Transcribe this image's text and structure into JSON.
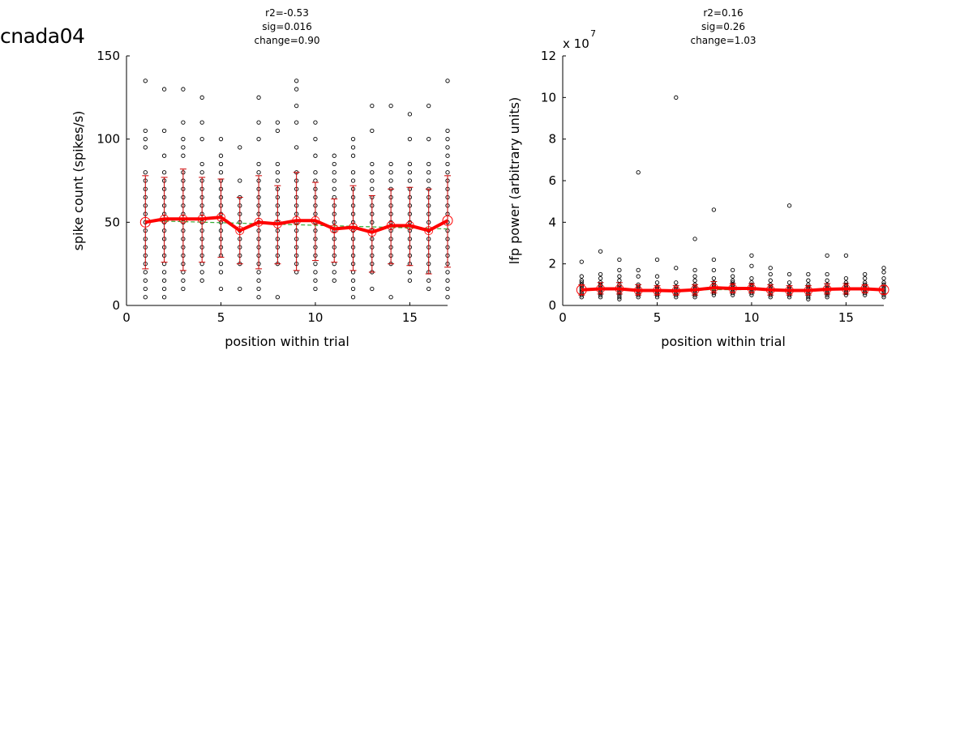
{
  "page": {
    "title": "cnada04"
  },
  "chart_data": [
    {
      "type": "scatter",
      "stats": [
        "r2=-0.53",
        "sig=0.016",
        "change=0.90"
      ],
      "xlabel": "position within trial",
      "ylabel": "spike count (spikes/s)",
      "xlim": [
        0,
        17
      ],
      "ylim": [
        0,
        150
      ],
      "xticks": [
        0,
        5,
        10,
        15
      ],
      "yticks": [
        0,
        50,
        100,
        150
      ],
      "exponent_label": "",
      "grid": false,
      "colors": {
        "points": "#000000",
        "mean": "#ff0000",
        "errorbar": "#cc0000",
        "fit": "#33aa33"
      },
      "positions": [
        1,
        2,
        3,
        4,
        5,
        6,
        7,
        8,
        9,
        10,
        11,
        12,
        13,
        14,
        15,
        16,
        17
      ],
      "trial_points": [
        [
          5,
          10,
          15,
          20,
          25,
          30,
          35,
          40,
          45,
          50,
          55,
          60,
          65,
          70,
          75,
          80,
          95,
          100,
          105,
          135
        ],
        [
          5,
          10,
          15,
          20,
          25,
          30,
          35,
          40,
          45,
          50,
          55,
          60,
          65,
          70,
          75,
          80,
          90,
          105,
          130
        ],
        [
          10,
          15,
          20,
          25,
          30,
          35,
          40,
          45,
          50,
          55,
          60,
          65,
          70,
          75,
          80,
          90,
          95,
          100,
          110,
          130
        ],
        [
          15,
          20,
          25,
          30,
          35,
          40,
          45,
          50,
          55,
          60,
          65,
          70,
          75,
          80,
          85,
          100,
          110,
          125
        ],
        [
          10,
          20,
          25,
          30,
          35,
          40,
          45,
          50,
          55,
          60,
          65,
          70,
          75,
          80,
          85,
          90,
          100
        ],
        [
          10,
          25,
          30,
          35,
          40,
          45,
          50,
          55,
          60,
          65,
          75,
          95
        ],
        [
          5,
          10,
          15,
          20,
          25,
          30,
          35,
          40,
          45,
          50,
          55,
          60,
          65,
          70,
          75,
          80,
          85,
          100,
          110,
          125
        ],
        [
          5,
          25,
          30,
          35,
          40,
          45,
          50,
          55,
          60,
          65,
          70,
          75,
          80,
          85,
          105,
          110
        ],
        [
          20,
          25,
          30,
          35,
          40,
          45,
          50,
          55,
          60,
          65,
          70,
          75,
          80,
          95,
          110,
          120,
          130,
          135
        ],
        [
          10,
          15,
          20,
          25,
          30,
          35,
          40,
          45,
          50,
          55,
          60,
          65,
          70,
          75,
          80,
          90,
          100,
          110
        ],
        [
          15,
          20,
          25,
          30,
          35,
          40,
          45,
          50,
          55,
          60,
          65,
          70,
          75,
          80,
          85,
          90
        ],
        [
          5,
          10,
          15,
          20,
          25,
          30,
          35,
          40,
          45,
          50,
          55,
          60,
          65,
          70,
          75,
          80,
          90,
          95,
          100
        ],
        [
          10,
          20,
          25,
          30,
          35,
          40,
          45,
          50,
          55,
          60,
          65,
          70,
          75,
          80,
          85,
          105,
          120
        ],
        [
          5,
          25,
          30,
          35,
          40,
          45,
          50,
          55,
          60,
          65,
          70,
          75,
          80,
          85,
          120
        ],
        [
          15,
          20,
          25,
          30,
          35,
          40,
          45,
          50,
          55,
          60,
          65,
          70,
          75,
          80,
          85,
          100,
          115
        ],
        [
          10,
          15,
          20,
          25,
          30,
          35,
          40,
          45,
          50,
          55,
          60,
          65,
          70,
          75,
          80,
          85,
          100,
          120
        ],
        [
          5,
          10,
          15,
          20,
          25,
          30,
          35,
          40,
          45,
          50,
          55,
          60,
          65,
          70,
          75,
          80,
          85,
          90,
          95,
          100,
          105,
          135
        ]
      ],
      "mean": [
        50,
        52,
        52,
        52,
        53,
        45,
        50,
        49,
        51,
        51,
        46,
        47,
        44,
        48,
        48,
        45,
        51
      ],
      "errorbar_low": [
        22,
        26,
        21,
        26,
        29,
        25,
        22,
        25,
        21,
        27,
        26,
        21,
        20,
        25,
        24,
        19,
        23
      ],
      "errorbar_high": [
        78,
        77,
        82,
        77,
        76,
        65,
        78,
        72,
        80,
        74,
        64,
        72,
        66,
        70,
        71,
        70,
        78
      ],
      "fit": {
        "x": [
          1,
          17
        ],
        "y": [
          51,
          46
        ]
      }
    },
    {
      "type": "scatter",
      "stats": [
        "r2=0.16",
        "sig=0.26",
        "change=1.03"
      ],
      "xlabel": "position within trial",
      "ylabel": "lfp power (arbitrary units)",
      "xlim": [
        0,
        17
      ],
      "ylim": [
        0,
        12
      ],
      "xticks": [
        0,
        5,
        10,
        15
      ],
      "yticks": [
        0,
        2,
        4,
        6,
        8,
        10,
        12
      ],
      "exponent_label": "x 10",
      "exponent_power": "7",
      "grid": false,
      "colors": {
        "points": "#000000",
        "mean": "#ff0000",
        "errorbar": "#cc0000",
        "fit": "#33aa33"
      },
      "positions": [
        1,
        2,
        3,
        4,
        5,
        6,
        7,
        8,
        9,
        10,
        11,
        12,
        13,
        14,
        15,
        16,
        17
      ],
      "trial_points": [
        [
          0.4,
          0.5,
          0.6,
          0.7,
          0.8,
          0.9,
          1.0,
          1.1,
          1.2,
          1.4,
          2.1
        ],
        [
          0.4,
          0.5,
          0.6,
          0.7,
          0.8,
          0.9,
          1.0,
          1.1,
          1.3,
          1.5,
          2.6
        ],
        [
          0.3,
          0.4,
          0.5,
          0.6,
          0.7,
          0.8,
          0.9,
          1.0,
          1.2,
          1.4,
          1.7,
          2.2
        ],
        [
          0.4,
          0.5,
          0.6,
          0.7,
          0.8,
          0.9,
          1.0,
          1.4,
          1.7,
          6.4
        ],
        [
          0.4,
          0.5,
          0.6,
          0.7,
          0.8,
          0.9,
          1.1,
          1.4,
          2.2
        ],
        [
          0.4,
          0.5,
          0.6,
          0.7,
          0.8,
          0.9,
          1.1,
          1.8,
          10.0
        ],
        [
          0.4,
          0.5,
          0.6,
          0.7,
          0.8,
          0.9,
          1.0,
          1.2,
          1.4,
          1.7,
          3.2
        ],
        [
          0.5,
          0.6,
          0.7,
          0.8,
          0.9,
          1.0,
          1.1,
          1.3,
          1.7,
          2.2,
          4.6
        ],
        [
          0.5,
          0.6,
          0.7,
          0.8,
          0.9,
          1.0,
          1.1,
          1.2,
          1.4,
          1.7
        ],
        [
          0.5,
          0.6,
          0.7,
          0.8,
          0.9,
          1.0,
          1.1,
          1.3,
          1.9,
          2.4
        ],
        [
          0.4,
          0.5,
          0.6,
          0.7,
          0.8,
          0.9,
          1.0,
          1.2,
          1.5,
          1.8
        ],
        [
          0.4,
          0.5,
          0.6,
          0.7,
          0.8,
          0.9,
          1.1,
          1.5,
          4.8
        ],
        [
          0.3,
          0.4,
          0.5,
          0.6,
          0.7,
          0.8,
          0.9,
          1.0,
          1.2,
          1.5
        ],
        [
          0.4,
          0.5,
          0.6,
          0.7,
          0.8,
          0.9,
          1.0,
          1.2,
          1.5,
          2.4
        ],
        [
          0.5,
          0.6,
          0.7,
          0.8,
          0.9,
          1.0,
          1.1,
          1.3,
          2.4
        ],
        [
          0.5,
          0.6,
          0.7,
          0.8,
          0.9,
          1.0,
          1.1,
          1.3,
          1.5
        ],
        [
          0.4,
          0.5,
          0.6,
          0.7,
          0.8,
          0.9,
          1.0,
          1.1,
          1.3,
          1.6,
          1.8
        ]
      ],
      "mean": [
        0.75,
        0.8,
        0.8,
        0.72,
        0.72,
        0.7,
        0.75,
        0.85,
        0.82,
        0.82,
        0.75,
        0.72,
        0.72,
        0.78,
        0.8,
        0.8,
        0.75
      ],
      "errorbar_low": [
        0.5,
        0.55,
        0.55,
        0.5,
        0.5,
        0.5,
        0.5,
        0.6,
        0.6,
        0.6,
        0.5,
        0.5,
        0.5,
        0.55,
        0.55,
        0.6,
        0.55
      ],
      "errorbar_high": [
        1.0,
        1.1,
        1.1,
        1.0,
        0.95,
        0.95,
        1.0,
        1.15,
        1.05,
        1.05,
        1.0,
        0.95,
        0.95,
        1.05,
        1.05,
        1.0,
        0.95
      ],
      "fit": {
        "x": [
          1,
          17
        ],
        "y": [
          0.74,
          0.78
        ]
      }
    }
  ]
}
